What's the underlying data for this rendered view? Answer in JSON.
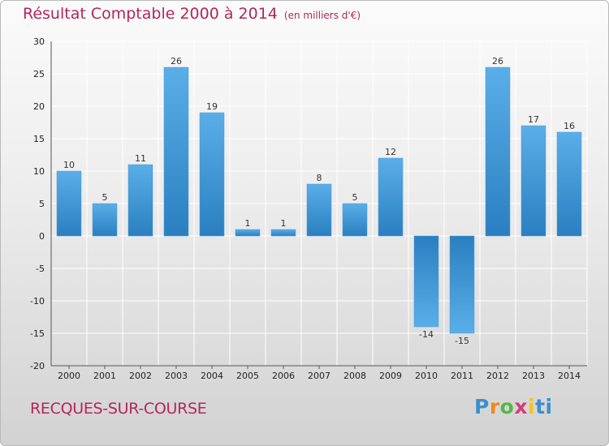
{
  "header": {
    "title": "Résultat Comptable 2000 à 2014",
    "subtitle": "(en milliers d'€)"
  },
  "footer": {
    "place": "RECQUES-SUR-COURSE",
    "brand": "Proxiti"
  },
  "colors": {
    "title": "#b5255d",
    "bar_light": "#5aaee8",
    "bar_dark": "#2a7fc0",
    "grid": "#ffffff"
  },
  "chart_data": {
    "type": "bar",
    "title": "Résultat Comptable 2000 à 2014",
    "subtitle": "(en milliers d'€)",
    "xlabel": "",
    "ylabel": "",
    "categories": [
      "2000",
      "2001",
      "2002",
      "2003",
      "2004",
      "2005",
      "2006",
      "2007",
      "2008",
      "2009",
      "2010",
      "2011",
      "2012",
      "2013",
      "2014"
    ],
    "values": [
      10,
      5,
      11,
      26,
      19,
      1,
      1,
      8,
      5,
      12,
      -14,
      -15,
      26,
      17,
      16
    ],
    "ylim": [
      -20,
      30
    ],
    "yticks": [
      30,
      25,
      20,
      15,
      10,
      5,
      0,
      -5,
      -10,
      -15,
      -20
    ],
    "grid": true,
    "legend": "none"
  }
}
